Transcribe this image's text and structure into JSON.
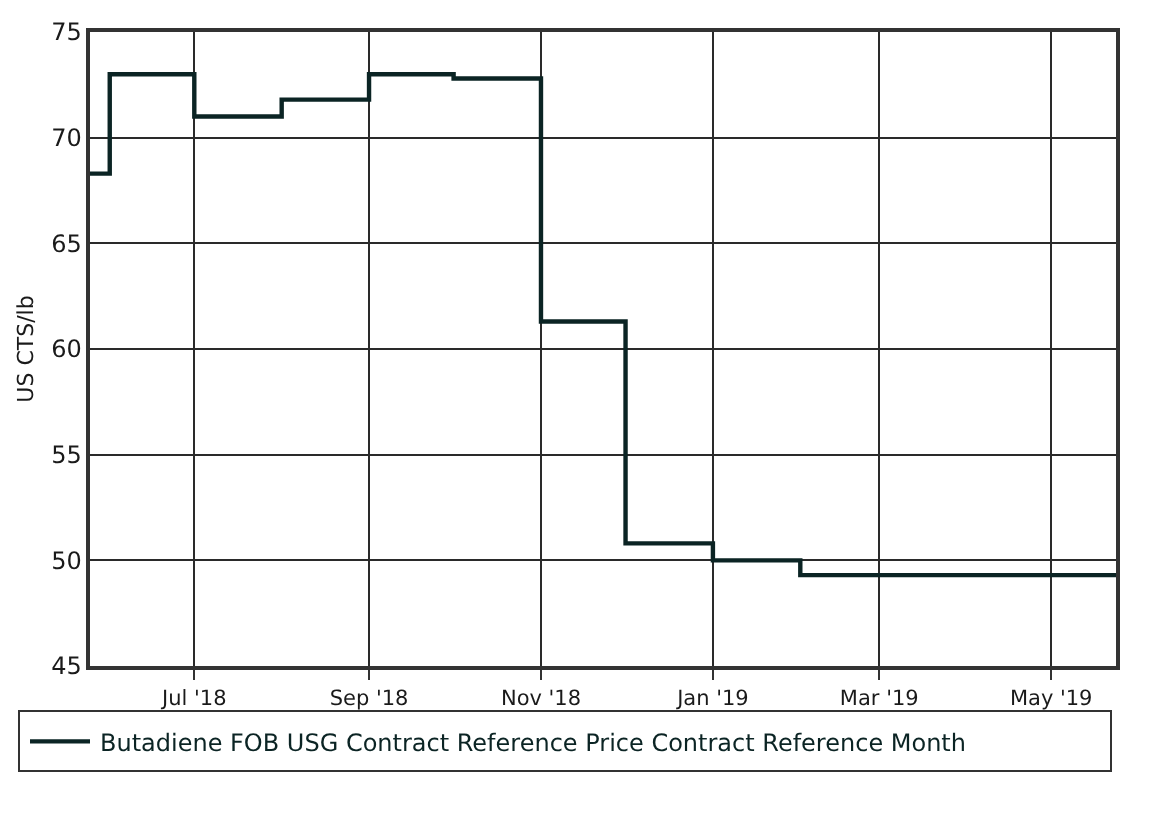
{
  "chart_data": {
    "type": "step",
    "ylabel": "US CTS/lb",
    "x": [
      "2018-05-25",
      "2018-06-01",
      "2018-07-01",
      "2018-08-01",
      "2018-09-01",
      "2018-10-01",
      "2018-11-01",
      "2018-12-01",
      "2019-01-01",
      "2019-02-01",
      "2019-03-01",
      "2019-04-01",
      "2019-05-01",
      "2019-05-24"
    ],
    "series": [
      {
        "name": "Butadiene FOB USG Contract Reference Price Contract Reference Month",
        "color": "#0b2424",
        "values": [
          68.3,
          73,
          71,
          71.8,
          73,
          72.8,
          61.3,
          50.8,
          50,
          49.3,
          49.3,
          49.3,
          49.3,
          49.3
        ]
      }
    ],
    "xlim": [
      "2018-05-25",
      "2019-05-24"
    ],
    "xticks": [
      {
        "value": "2018-07-01",
        "label": "Jul '18"
      },
      {
        "value": "2018-09-01",
        "label": "Sep '18"
      },
      {
        "value": "2018-11-01",
        "label": "Nov '18"
      },
      {
        "value": "2019-01-01",
        "label": "Jan '19"
      },
      {
        "value": "2019-03-01",
        "label": "Mar '19"
      },
      {
        "value": "2019-05-01",
        "label": "May '19"
      }
    ],
    "ylim": [
      45,
      75
    ],
    "yticks": [
      45,
      50,
      55,
      60,
      65,
      70,
      75
    ],
    "grid": true,
    "legend": "bottom"
  }
}
